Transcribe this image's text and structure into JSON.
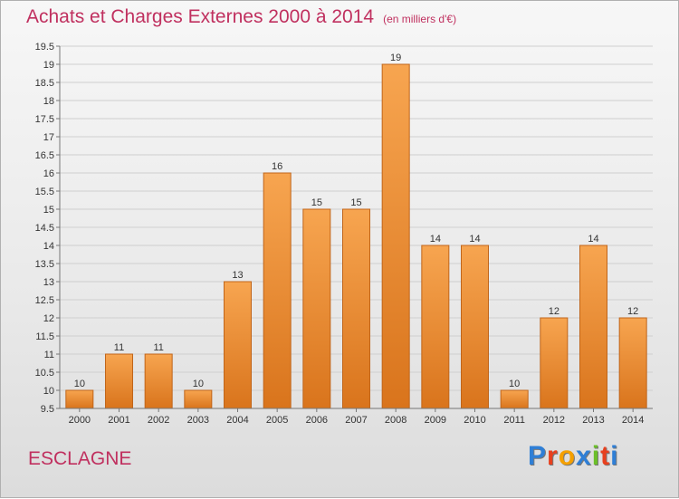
{
  "header": {
    "title": "Achats et Charges Externes 2000 à 2014",
    "subtitle": "(en milliers d'€)"
  },
  "commune": "ESCLAGNE",
  "logo": {
    "text": "Proxiti",
    "letter_colors": [
      "#2f7fd6",
      "#e8401e",
      "#f5a000",
      "#2f7fd6",
      "#6cbf2a",
      "#e8401e",
      "#2f7fd6"
    ]
  },
  "chart_data": {
    "type": "bar",
    "title": "Achats et Charges Externes 2000 à 2014",
    "xlabel": "",
    "ylabel": "",
    "categories": [
      "2000",
      "2001",
      "2002",
      "2003",
      "2004",
      "2005",
      "2006",
      "2007",
      "2008",
      "2009",
      "2010",
      "2011",
      "2012",
      "2013",
      "2014"
    ],
    "values": [
      10,
      11,
      11,
      10,
      13,
      16,
      15,
      15,
      19,
      14,
      14,
      10,
      12,
      14,
      12
    ],
    "data_labels": [
      "10",
      "11",
      "11",
      "10",
      "13",
      "16",
      "15",
      "15",
      "19",
      "14",
      "14",
      "10",
      "12",
      "14",
      "12"
    ],
    "ylim": [
      9.5,
      19.5
    ],
    "yticks": [
      9.5,
      10,
      10.5,
      11,
      11.5,
      12,
      12.5,
      13,
      13.5,
      14,
      14.5,
      15,
      15.5,
      16,
      16.5,
      17,
      17.5,
      18,
      18.5,
      19,
      19.5
    ],
    "ytick_labels": [
      "9.5",
      "10",
      "10.5",
      "11",
      "11.5",
      "12",
      "12.5",
      "13",
      "13.5",
      "14",
      "14.5",
      "15",
      "15.5",
      "16",
      "16.5",
      "17",
      "17.5",
      "18",
      "18.5",
      "19",
      "19.5"
    ],
    "grid": true,
    "colors": {
      "bar_top": "#f7a550",
      "bar_bottom": "#d9741c",
      "bar_stroke": "#c0651a",
      "grid": "#cfcfcf",
      "axis": "#777777"
    }
  }
}
